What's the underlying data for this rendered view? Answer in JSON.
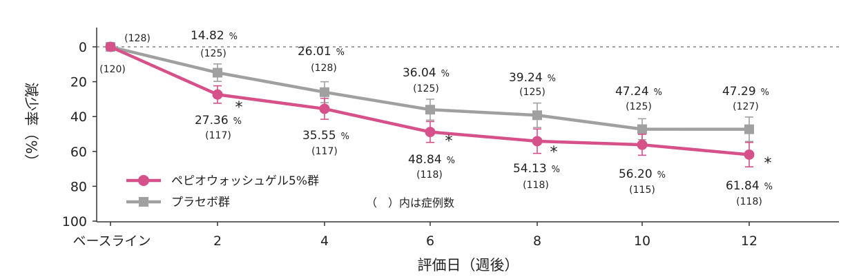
{
  "chart_data": {
    "type": "line",
    "xlabel": "評価日（週後）",
    "ylabel": "減少率（%）",
    "categories": [
      "ベースライン",
      "2",
      "4",
      "6",
      "8",
      "10",
      "12"
    ],
    "y_ticks": [
      "0",
      "20",
      "40",
      "60",
      "80",
      "100"
    ],
    "ylim": [
      0,
      100
    ],
    "y_inverted": true,
    "grid": false,
    "reference_line_at": 0,
    "legend_position": "bottom-left",
    "note": "（　）内は症例数",
    "unit": "%",
    "significance_marker": "*",
    "series": [
      {
        "name": "ペピオウォッシュゲル5%群",
        "color": "#d6508a",
        "marker": "circle",
        "values": [
          0,
          27.36,
          35.55,
          48.84,
          54.13,
          56.2,
          61.84
        ],
        "labels": [
          "",
          "27.36",
          "35.55",
          "48.84",
          "54.13",
          "56.20",
          "61.84"
        ],
        "n": [
          "(120)",
          "(117)",
          "(117)",
          "(118)",
          "(118)",
          "(115)",
          "(118)"
        ],
        "error": [
          0,
          5,
          6,
          6,
          7,
          6,
          7
        ],
        "significant": [
          false,
          true,
          false,
          true,
          true,
          false,
          true
        ]
      },
      {
        "name": "プラセボ群",
        "color": "#a0a0a0",
        "marker": "square",
        "values": [
          0,
          14.82,
          26.01,
          36.04,
          39.24,
          47.24,
          47.29
        ],
        "labels": [
          "",
          "14.82",
          "26.01",
          "36.04",
          "39.24",
          "47.24",
          "47.29"
        ],
        "n": [
          "(128)",
          "(125)",
          "(128)",
          "(125)",
          "(125)",
          "(125)",
          "(127)"
        ],
        "error": [
          0,
          5,
          6,
          6,
          7,
          6,
          7
        ]
      }
    ]
  }
}
